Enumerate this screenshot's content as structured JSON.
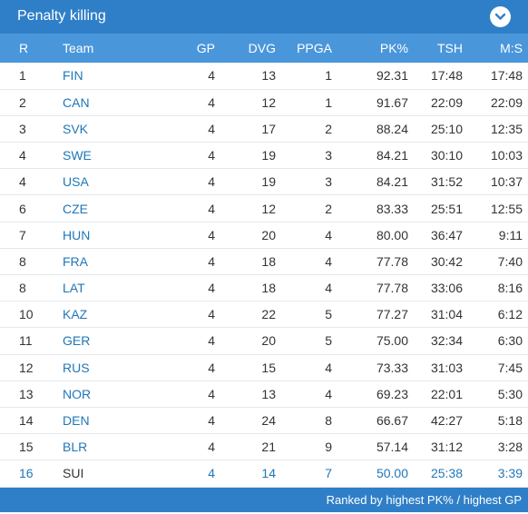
{
  "header": {
    "title": "Penalty killing",
    "collapse_icon": "chevron-down-icon"
  },
  "columns": [
    "R",
    "Team",
    "GP",
    "DVG",
    "PPGA",
    "PK%",
    "TSH",
    "M:S"
  ],
  "rows": [
    {
      "r": "1",
      "team": "FIN",
      "gp": "4",
      "dvg": "13",
      "ppga": "1",
      "pk": "92.31",
      "tsh": "17:48",
      "ms": "17:48"
    },
    {
      "r": "2",
      "team": "CAN",
      "gp": "4",
      "dvg": "12",
      "ppga": "1",
      "pk": "91.67",
      "tsh": "22:09",
      "ms": "22:09"
    },
    {
      "r": "3",
      "team": "SVK",
      "gp": "4",
      "dvg": "17",
      "ppga": "2",
      "pk": "88.24",
      "tsh": "25:10",
      "ms": "12:35"
    },
    {
      "r": "4",
      "team": "SWE",
      "gp": "4",
      "dvg": "19",
      "ppga": "3",
      "pk": "84.21",
      "tsh": "30:10",
      "ms": "10:03"
    },
    {
      "r": "4",
      "team": "USA",
      "gp": "4",
      "dvg": "19",
      "ppga": "3",
      "pk": "84.21",
      "tsh": "31:52",
      "ms": "10:37"
    },
    {
      "r": "6",
      "team": "CZE",
      "gp": "4",
      "dvg": "12",
      "ppga": "2",
      "pk": "83.33",
      "tsh": "25:51",
      "ms": "12:55"
    },
    {
      "r": "7",
      "team": "HUN",
      "gp": "4",
      "dvg": "20",
      "ppga": "4",
      "pk": "80.00",
      "tsh": "36:47",
      "ms": "9:11"
    },
    {
      "r": "8",
      "team": "FRA",
      "gp": "4",
      "dvg": "18",
      "ppga": "4",
      "pk": "77.78",
      "tsh": "30:42",
      "ms": "7:40"
    },
    {
      "r": "8",
      "team": "LAT",
      "gp": "4",
      "dvg": "18",
      "ppga": "4",
      "pk": "77.78",
      "tsh": "33:06",
      "ms": "8:16"
    },
    {
      "r": "10",
      "team": "KAZ",
      "gp": "4",
      "dvg": "22",
      "ppga": "5",
      "pk": "77.27",
      "tsh": "31:04",
      "ms": "6:12"
    },
    {
      "r": "11",
      "team": "GER",
      "gp": "4",
      "dvg": "20",
      "ppga": "5",
      "pk": "75.00",
      "tsh": "32:34",
      "ms": "6:30"
    },
    {
      "r": "12",
      "team": "RUS",
      "gp": "4",
      "dvg": "15",
      "ppga": "4",
      "pk": "73.33",
      "tsh": "31:03",
      "ms": "7:45"
    },
    {
      "r": "13",
      "team": "NOR",
      "gp": "4",
      "dvg": "13",
      "ppga": "4",
      "pk": "69.23",
      "tsh": "22:01",
      "ms": "5:30"
    },
    {
      "r": "14",
      "team": "DEN",
      "gp": "4",
      "dvg": "24",
      "ppga": "8",
      "pk": "66.67",
      "tsh": "42:27",
      "ms": "5:18"
    },
    {
      "r": "15",
      "team": "BLR",
      "gp": "4",
      "dvg": "21",
      "ppga": "9",
      "pk": "57.14",
      "tsh": "31:12",
      "ms": "3:28"
    },
    {
      "r": "16",
      "team": "SUI",
      "gp": "4",
      "dvg": "14",
      "ppga": "7",
      "pk": "50.00",
      "tsh": "25:38",
      "ms": "3:39",
      "highlight": true
    }
  ],
  "footer": {
    "note": "Ranked by highest PK% / highest GP"
  },
  "colors": {
    "header_bg": "#2f7fc8",
    "column_header_bg": "#4a96db",
    "link": "#1f77b8",
    "text": "#333333"
  }
}
